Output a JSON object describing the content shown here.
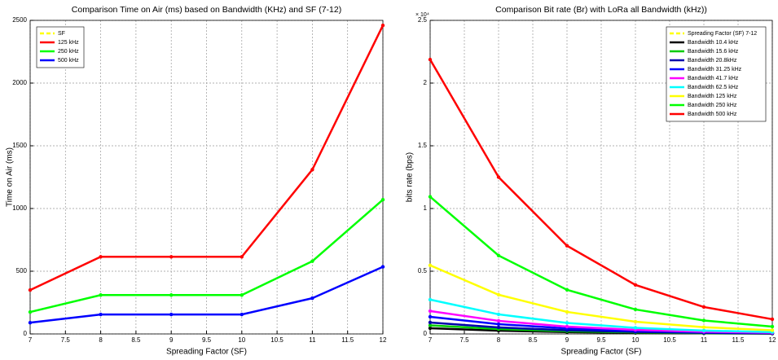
{
  "chart_data": [
    {
      "type": "line",
      "title": "Comparison Time on Air (ms) based on Bandwidth (KHz) and SF (7-12)",
      "x_label": "Spreading Factor (SF)",
      "y_label": "Time on Air (ms)",
      "x": [
        7,
        8,
        9,
        10,
        11,
        12
      ],
      "xlim": [
        7,
        12
      ],
      "xticks": [
        7,
        7.5,
        8,
        8.5,
        9,
        9.5,
        10,
        10.5,
        11,
        11.5,
        12
      ],
      "ylim": [
        0,
        2500
      ],
      "yticks": [
        0,
        500,
        1000,
        1500,
        2000,
        2500
      ],
      "grid": true,
      "legend": "upper left",
      "series": [
        {
          "name": "SF",
          "color": "#ffff00",
          "dash": true,
          "values": [
            null,
            null,
            null,
            null,
            null,
            null
          ]
        },
        {
          "name": "125 kHz",
          "color": "#ff0000",
          "values": [
            350,
            615,
            615,
            615,
            1310,
            2460
          ]
        },
        {
          "name": "250 kHz",
          "color": "#00ff00",
          "values": [
            175,
            310,
            310,
            310,
            580,
            1070
          ]
        },
        {
          "name": "500 kHz",
          "color": "#0000ff",
          "values": [
            90,
            155,
            155,
            155,
            285,
            535
          ]
        }
      ]
    },
    {
      "type": "line",
      "title": "Comparison Bit rate (Br) with LoRa all Bandwidth (kHz))",
      "x_label": "Spreading Factor (SF)",
      "y_label": "bits rate (bps)",
      "y_exponent": "× 10⁴",
      "x": [
        7,
        8,
        9,
        10,
        11,
        12
      ],
      "xlim": [
        7,
        12
      ],
      "xticks": [
        7,
        7.5,
        8,
        8.5,
        9,
        9.5,
        10,
        10.5,
        11,
        11.5,
        12
      ],
      "ylim": [
        0,
        25000
      ],
      "yticks": [
        0,
        {
          "value": 5000,
          "label": "0.5"
        },
        {
          "value": 10000,
          "label": "1"
        },
        {
          "value": 15000,
          "label": "1.5"
        },
        {
          "value": 20000,
          "label": "2"
        },
        {
          "value": 25000,
          "label": "2.5"
        }
      ],
      "grid": true,
      "legend": "upper right",
      "series": [
        {
          "name": "Spreading Factor (SF) 7-12",
          "color": "#ffff00",
          "dash": true,
          "values": [
            null,
            null,
            null,
            null,
            null,
            null
          ]
        },
        {
          "name": "Bandwidth 10.4 kHz",
          "color": "#000000",
          "values": [
            455,
            260,
            146,
            81,
            45,
            24
          ]
        },
        {
          "name": "Bandwidth 15.6 kHz",
          "color": "#00cc00",
          "values": [
            683,
            390,
            219,
            122,
            67,
            37
          ]
        },
        {
          "name": "Bandwidth 20.8kHz",
          "color": "#0000aa",
          "values": [
            910,
            520,
            293,
            163,
            89,
            49
          ]
        },
        {
          "name": "Bandwidth 31.25 kHz",
          "color": "#0000ff",
          "values": [
            1367,
            781,
            439,
            244,
            134,
            73
          ]
        },
        {
          "name": "Bandwidth 41.7 kHz",
          "color": "#ff00ff",
          "values": [
            1824,
            1043,
            586,
            326,
            179,
            98
          ]
        },
        {
          "name": "Bandwidth 62.5 kHz",
          "color": "#00ffff",
          "values": [
            2734,
            1563,
            879,
            488,
            269,
            146
          ]
        },
        {
          "name": "Bandwidth 125 kHz",
          "color": "#ffff00",
          "values": [
            5469,
            3125,
            1758,
            977,
            537,
            293
          ]
        },
        {
          "name": "Bandwidth 250 kHz",
          "color": "#00ff00",
          "values": [
            10938,
            6250,
            3516,
            1953,
            1074,
            586
          ]
        },
        {
          "name": "Bandwidth 500 kHz",
          "color": "#ff0000",
          "values": [
            21875,
            12500,
            7031,
            3906,
            2148,
            1172
          ]
        }
      ]
    }
  ]
}
